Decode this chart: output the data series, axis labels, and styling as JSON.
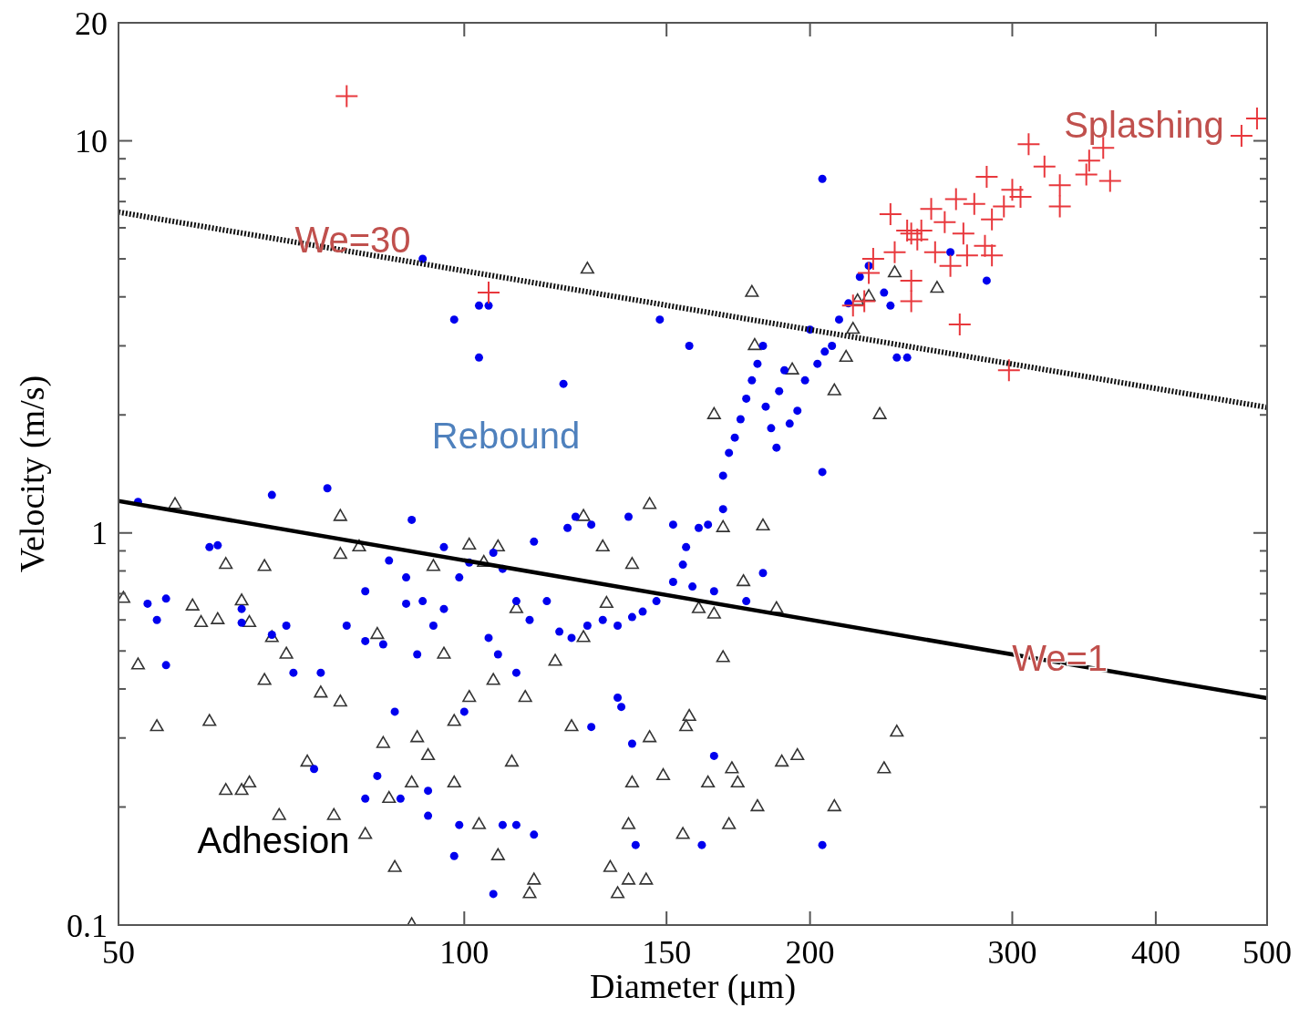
{
  "chart_data": {
    "type": "scatter",
    "xlabel": "Diameter (μm)",
    "ylabel": "Velocity (m/s)",
    "log": "xy",
    "grid": false,
    "xlim": [
      50,
      500
    ],
    "xticks": [
      50,
      100,
      150,
      200,
      300,
      400,
      500
    ],
    "ylim": [
      0.1,
      20
    ],
    "yticks": [
      0.1,
      {
        "value": 0.2,
        "label": null
      },
      {
        "value": 0.3,
        "label": null
      },
      {
        "value": 0.4,
        "label": null
      },
      {
        "value": 0.5,
        "label": null
      },
      {
        "value": 0.6,
        "label": null
      },
      {
        "value": 0.7,
        "label": null
      },
      {
        "value": 0.8,
        "label": null
      },
      {
        "value": 0.9,
        "label": null
      },
      1,
      {
        "value": 2,
        "label": null
      },
      {
        "value": 3,
        "label": null
      },
      {
        "value": 4,
        "label": null
      },
      {
        "value": 5,
        "label": null
      },
      {
        "value": 6,
        "label": null
      },
      {
        "value": 7,
        "label": null
      },
      {
        "value": 8,
        "label": null
      },
      {
        "value": 9,
        "label": null
      },
      10,
      20
    ],
    "annotations": [
      "Splashing",
      "We=30",
      "Rebound",
      {
        "text": "We=1",
        "x": 330,
        "y": 0.48
      },
      "Adhesion"
    ],
    "series": [
      {
        "marker": "triangle",
        "color": "#333333",
        "x": [
          50.5,
          52,
          54,
          56,
          58,
          59,
          60,
          61,
          62,
          62,
          64,
          64,
          65,
          65,
          67,
          67,
          68,
          69,
          70,
          73,
          75,
          77,
          78,
          78,
          78,
          81,
          82,
          84,
          85,
          87,
          90,
          90,
          91,
          86,
          93,
          94,
          96,
          98,
          98,
          101,
          101,
          103,
          104,
          106,
          107,
          107,
          110,
          111,
          113,
          114,
          115,
          120,
          124,
          127,
          127,
          128,
          132,
          133,
          134,
          136,
          139,
          139,
          140,
          140,
          144,
          145,
          145,
          149,
          155,
          156,
          157,
          160,
          165,
          163,
          165,
          168,
          168,
          170,
          171,
          173,
          175,
          178,
          179,
          180,
          182,
          187,
          189,
          193,
          195,
          210,
          210,
          220,
          225,
          230,
          232,
          238,
          237,
          258,
          218,
          215
        ],
        "values": [
          0.68,
          0.46,
          0.32,
          1.18,
          0.65,
          0.59,
          0.33,
          0.6,
          0.83,
          0.22,
          0.22,
          0.67,
          0.59,
          0.23,
          0.82,
          0.42,
          0.54,
          0.19,
          0.49,
          0.26,
          0.39,
          0.19,
          1.1,
          0.37,
          0.88,
          0.92,
          0.17,
          0.55,
          0.29,
          0.14,
          0.1,
          0.23,
          0.3,
          0.21,
          0.27,
          0.82,
          0.49,
          0.23,
          0.33,
          0.93,
          0.38,
          0.18,
          0.84,
          0.42,
          0.15,
          0.92,
          0.26,
          0.64,
          0.38,
          0.12,
          0.13,
          0.47,
          0.32,
          1.1,
          0.54,
          4.7,
          0.92,
          0.66,
          0.14,
          0.12,
          0.13,
          0.18,
          0.83,
          0.23,
          0.13,
          1.18,
          0.3,
          0.24,
          0.17,
          0.32,
          0.34,
          0.64,
          2.0,
          0.23,
          0.62,
          1.03,
          0.48,
          0.18,
          0.25,
          0.23,
          0.75,
          4.1,
          3.0,
          0.2,
          1.04,
          0.64,
          0.26,
          2.6,
          0.27,
          2.3,
          0.2,
          3.9,
          4.0,
          2.0,
          0.25,
          0.31,
          4.6,
          4.2,
          3.3,
          2.8
        ]
      },
      {
        "marker": "circle",
        "color": "#0000ee",
        "x": [
          205,
          92,
          98,
          103,
          105,
          103,
          122,
          148,
          157,
          52,
          68,
          76,
          90,
          60,
          61,
          53,
          54,
          55,
          55,
          64,
          64,
          70,
          68,
          71,
          74,
          75,
          79,
          82,
          82,
          85,
          86,
          89,
          89,
          92,
          96,
          94,
          96,
          91,
          99,
          101,
          106,
          108,
          111,
          115,
          114,
          105,
          107,
          111,
          118,
          121,
          124,
          128,
          132,
          136,
          140,
          143,
          147,
          152,
          155,
          158,
          152,
          156,
          160,
          163,
          168,
          123,
          125,
          129,
          139,
          168,
          170,
          172,
          174,
          176,
          178,
          180,
          182,
          183,
          185,
          187,
          188,
          190,
          192,
          195,
          198,
          203,
          206,
          200,
          209,
          212,
          216,
          221,
          225,
          232,
          235,
          238,
          243,
          265,
          285,
          205,
          182,
          176,
          165,
          93,
          88,
          82,
          84,
          93,
          98,
          106,
          108,
          111,
          115,
          99,
          136,
          137,
          129,
          140,
          165,
          161,
          205,
          141,
          87,
          100
        ],
        "values": [
          8.0,
          5.0,
          3.5,
          3.8,
          3.8,
          2.8,
          2.4,
          3.5,
          3.0,
          1.2,
          1.25,
          1.3,
          1.08,
          0.92,
          0.93,
          0.66,
          0.6,
          0.68,
          0.46,
          0.64,
          0.59,
          0.58,
          0.55,
          0.44,
          0.25,
          0.44,
          0.58,
          0.71,
          0.53,
          0.52,
          0.85,
          0.77,
          0.66,
          0.67,
          0.92,
          0.58,
          0.64,
          0.49,
          0.77,
          0.84,
          0.89,
          0.81,
          0.67,
          0.95,
          0.6,
          0.54,
          0.49,
          0.44,
          0.67,
          0.56,
          0.54,
          0.58,
          0.6,
          0.58,
          0.61,
          0.63,
          0.67,
          0.75,
          0.83,
          0.73,
          1.05,
          0.92,
          1.03,
          1.05,
          1.15,
          1.03,
          1.1,
          1.05,
          1.1,
          1.4,
          1.6,
          1.75,
          1.95,
          2.2,
          2.45,
          2.7,
          3.0,
          2.1,
          1.85,
          1.65,
          2.3,
          2.6,
          1.9,
          2.05,
          2.45,
          2.7,
          2.9,
          3.3,
          3.0,
          3.5,
          3.85,
          4.5,
          4.8,
          4.1,
          3.8,
          2.8,
          2.8,
          5.2,
          4.4,
          1.43,
          0.79,
          0.67,
          0.71,
          0.22,
          0.21,
          0.21,
          0.24,
          0.19,
          0.15,
          0.12,
          0.18,
          0.18,
          0.17,
          0.18,
          0.38,
          0.36,
          0.32,
          0.29,
          0.27,
          0.16,
          0.16,
          0.16,
          0.35,
          0.35
        ]
      },
      {
        "marker": "cross",
        "color": "#e8383d",
        "x": [
          79,
          105,
          490,
          475,
          310,
          320,
          285,
          330,
          350,
          360,
          365,
          348,
          330,
          300,
          305,
          295,
          288,
          278,
          268,
          255,
          243,
          235,
          248,
          237,
          257,
          265,
          272,
          274,
          284,
          288,
          227,
          225,
          245,
          245,
          223,
          218,
          270,
          298,
          245,
          250,
          262
        ],
        "values": [
          13,
          4.1,
          11.4,
          10.3,
          9.8,
          8.6,
          8.1,
          7.7,
          8.9,
          9.6,
          7.9,
          8.2,
          6.8,
          7.5,
          7.2,
          6.8,
          6.3,
          6.9,
          7.1,
          6.7,
          5.9,
          6.5,
          5.6,
          5.2,
          5.2,
          4.8,
          5.8,
          5.1,
          5.4,
          5.1,
          5.0,
          4.6,
          4.4,
          3.9,
          3.9,
          3.8,
          3.4,
          2.6,
          5.8,
          5.9,
          6.2
        ]
      },
      {
        "type": "line",
        "line_style": "dotted",
        "color": "#111111",
        "x": [
          50,
          500
        ],
        "values": [
          6.58,
          2.09
        ]
      },
      {
        "type": "line",
        "line_style": "solid",
        "color": "#000000",
        "x": [
          50,
          500
        ],
        "values": [
          1.206,
          0.379
        ]
      }
    ]
  }
}
